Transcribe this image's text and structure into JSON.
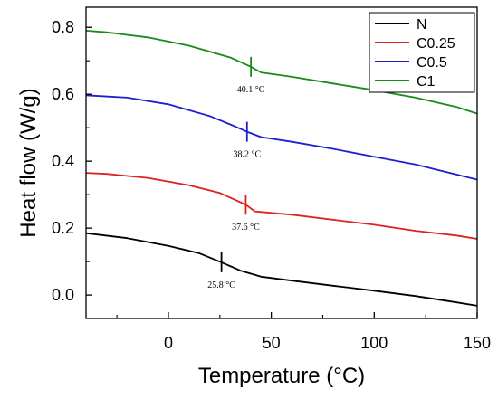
{
  "chart_data": {
    "type": "line",
    "xlabel": "Temperature (°C)",
    "ylabel": "Heat flow (W/g)",
    "xlim": [
      -40,
      150
    ],
    "ylim": [
      -0.07,
      0.86
    ],
    "x_ticks": [
      0,
      50,
      100,
      150
    ],
    "y_ticks": [
      0.0,
      0.2,
      0.4,
      0.6,
      0.8
    ],
    "x_tick_labels": [
      "0",
      "50",
      "100",
      "150"
    ],
    "y_tick_labels": [
      "0.0",
      "0.2",
      "0.4",
      "0.6",
      "0.8"
    ],
    "legend_position": "top-right",
    "series": [
      {
        "name": "N",
        "color": "#000000",
        "points": [
          [
            -40,
            0.185
          ],
          [
            -20,
            0.17
          ],
          [
            0,
            0.147
          ],
          [
            15,
            0.125
          ],
          [
            25.8,
            0.098
          ],
          [
            35,
            0.073
          ],
          [
            45,
            0.055
          ],
          [
            60,
            0.043
          ],
          [
            80,
            0.028
          ],
          [
            100,
            0.013
          ],
          [
            120,
            -0.003
          ],
          [
            140,
            -0.022
          ],
          [
            150,
            -0.032
          ]
        ],
        "transition": {
          "x": 25.8,
          "y": 0.098,
          "label": "25.8 °C"
        }
      },
      {
        "name": "C0.25",
        "color": "#dd2020",
        "points": [
          [
            -40,
            0.365
          ],
          [
            -30,
            0.362
          ],
          [
            -10,
            0.35
          ],
          [
            10,
            0.328
          ],
          [
            25,
            0.305
          ],
          [
            37.6,
            0.27
          ],
          [
            42,
            0.25
          ],
          [
            60,
            0.24
          ],
          [
            80,
            0.225
          ],
          [
            100,
            0.21
          ],
          [
            120,
            0.192
          ],
          [
            140,
            0.178
          ],
          [
            150,
            0.168
          ]
        ],
        "transition": {
          "x": 37.6,
          "y": 0.27,
          "label": "37.6 °C"
        }
      },
      {
        "name": "C0.5",
        "color": "#1f1fd0",
        "points": [
          [
            -40,
            0.597
          ],
          [
            -20,
            0.59
          ],
          [
            0,
            0.57
          ],
          [
            20,
            0.535
          ],
          [
            30,
            0.51
          ],
          [
            38.2,
            0.488
          ],
          [
            45,
            0.472
          ],
          [
            60,
            0.458
          ],
          [
            80,
            0.437
          ],
          [
            100,
            0.413
          ],
          [
            120,
            0.39
          ],
          [
            130,
            0.375
          ],
          [
            150,
            0.345
          ]
        ],
        "transition": {
          "x": 38.2,
          "y": 0.488,
          "label": "38.2 °C"
        }
      },
      {
        "name": "C1",
        "color": "#1a8a1a",
        "points": [
          [
            -40,
            0.79
          ],
          [
            -30,
            0.785
          ],
          [
            -10,
            0.77
          ],
          [
            10,
            0.745
          ],
          [
            30,
            0.71
          ],
          [
            40.1,
            0.682
          ],
          [
            45,
            0.665
          ],
          [
            60,
            0.652
          ],
          [
            80,
            0.632
          ],
          [
            100,
            0.612
          ],
          [
            120,
            0.59
          ],
          [
            140,
            0.562
          ],
          [
            150,
            0.542
          ]
        ],
        "transition": {
          "x": 40.1,
          "y": 0.682,
          "label": "40.1 °C"
        }
      }
    ]
  }
}
